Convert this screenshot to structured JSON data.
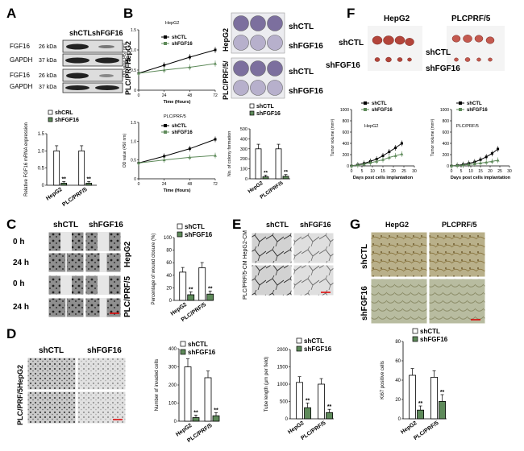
{
  "panels": {
    "A": "A",
    "B": "B",
    "C": "C",
    "D": "D",
    "E": "E",
    "F": "F",
    "G": "G"
  },
  "common": {
    "shCTL": "shCTL",
    "shFGF16": "shFGF16",
    "shCRL": "shCRL",
    "hepg2": "HepG2",
    "plc": "PLC/PRF/5",
    "plc2": "PLCPRF/5",
    "plc_slash": "PLC/PRF/5/",
    "sig": "**"
  },
  "A": {
    "col1": "shCTL",
    "col2": "shFGF16",
    "blots": [
      {
        "name": "FGF16",
        "kda": "26 kDa"
      },
      {
        "name": "GAPDH",
        "kda": "37 kDa"
      },
      {
        "name": "FGF16",
        "kda": "26 kDa"
      },
      {
        "name": "GAPDH",
        "kda": "37 kDa"
      }
    ],
    "side1": "HepG2",
    "side2": "PLC/PRF/5",
    "legend": [
      "shCRL",
      "shFGF16"
    ],
    "ylabel": "Relative FGF16 mRNA expression"
  },
  "B": {
    "plate_label1": "HepG2",
    "plate_label2": "PLC/PRF/5/",
    "ylabel_growth": "OD value (450 nm)",
    "xlabel_growth": "Time (Hours)",
    "ylabel_colony": "No. of colony formation"
  },
  "C": {
    "row_labels": [
      "0 h",
      "24 h",
      "0 h",
      "24 h"
    ],
    "side1": "HepG2",
    "side2": "PLC/PRF/5",
    "ylabel": "Percentage of wound closure (%)"
  },
  "D": {
    "side1": "HepG2",
    "side2": "PLC/PRF/5",
    "ylabel_invaded": "Number of invaded cells",
    "ylabel_tube": "Tube length (μm per field)"
  },
  "E": {
    "side_label": "PLC/PRF/5-CM HepG2-CM"
  },
  "F": {
    "ylabel": "Tumor volume (mm³)",
    "xlabel": "Days post cells implantation"
  },
  "G": {
    "col1": "HepG2",
    "col2": "PLCPRF/5",
    "row1": "shCTL",
    "row2": "shFGF16",
    "ylabel": "Ki67 positive cells"
  },
  "chart_data": [
    {
      "id": "A-mrna",
      "type": "bar",
      "categories": [
        "HepG2",
        "PLC/PRF/5"
      ],
      "series": [
        {
          "name": "shCRL",
          "values": [
            1.0,
            1.0
          ]
        },
        {
          "name": "shFGF16",
          "values": [
            0.06,
            0.06
          ]
        }
      ],
      "ylim": [
        0,
        1.5
      ],
      "ticks": [
        0,
        0.5,
        1.0,
        1.5
      ],
      "ylabel": "Relative FGF16 mRNA expression"
    },
    {
      "id": "B-hepg2",
      "type": "line",
      "title": "HepG2",
      "x": [
        0,
        24,
        48,
        72
      ],
      "series": [
        {
          "name": "shCTL",
          "values": [
            0.42,
            0.62,
            0.82,
            1.0
          ]
        },
        {
          "name": "shFGF16",
          "values": [
            0.42,
            0.5,
            0.57,
            0.66
          ]
        }
      ],
      "ylim": [
        0,
        1.5
      ],
      "ticks": [
        0,
        0.5,
        1.0,
        1.5
      ],
      "xlabel": "Time (Hours)",
      "ylabel": "OD value (450 nm)"
    },
    {
      "id": "B-plc",
      "type": "line",
      "title": "PLC/PRF/5",
      "x": [
        0,
        24,
        48,
        72
      ],
      "series": [
        {
          "name": "shCTL",
          "values": [
            0.42,
            0.6,
            0.8,
            1.05
          ]
        },
        {
          "name": "shFGF16",
          "values": [
            0.42,
            0.5,
            0.57,
            0.62
          ]
        }
      ],
      "ylim": [
        0,
        1.5
      ],
      "ticks": [
        0,
        0.5,
        1.0,
        1.5
      ],
      "xlabel": "Time (Hours)",
      "ylabel": "OD value (450 nm)"
    },
    {
      "id": "B-colony",
      "type": "bar",
      "categories": [
        "HepG2",
        "PLC/PRF/5"
      ],
      "series": [
        {
          "name": "shCTL",
          "values": [
            300,
            300
          ]
        },
        {
          "name": "shFGF16",
          "values": [
            20,
            25
          ]
        }
      ],
      "ylim": [
        0,
        500
      ],
      "ticks": [
        0,
        100,
        200,
        300,
        400,
        500
      ],
      "ylabel": "No. of colony formation"
    },
    {
      "id": "C-wound",
      "type": "bar",
      "categories": [
        "HepG2",
        "PLC/PRF/5"
      ],
      "series": [
        {
          "name": "shCTL",
          "values": [
            45,
            52
          ]
        },
        {
          "name": "shFGF16",
          "values": [
            9,
            10
          ]
        }
      ],
      "ylim": [
        0,
        100
      ],
      "ticks": [
        0,
        20,
        40,
        60,
        80,
        100
      ],
      "ylabel": "Percentage of wound closure (%)"
    },
    {
      "id": "D-invaded",
      "type": "bar",
      "categories": [
        "HepG2",
        "PLC/PRF/5"
      ],
      "series": [
        {
          "name": "shCTL",
          "values": [
            300,
            240
          ]
        },
        {
          "name": "shFGF16",
          "values": [
            20,
            30
          ]
        }
      ],
      "ylim": [
        0,
        400
      ],
      "ticks": [
        0,
        100,
        200,
        300,
        400
      ],
      "ylabel": "Number of invaded cells"
    },
    {
      "id": "D-tube",
      "type": "bar",
      "categories": [
        "HepG2",
        "PLC/PRF/5"
      ],
      "series": [
        {
          "name": "shCTL",
          "values": [
            1050,
            1000
          ]
        },
        {
          "name": "shFGF16",
          "values": [
            320,
            180
          ]
        }
      ],
      "ylim": [
        0,
        2000
      ],
      "ticks": [
        0,
        500,
        1000,
        1500,
        2000
      ],
      "ylabel": "Tube length (μm per field)"
    },
    {
      "id": "F-hepg2",
      "type": "line",
      "title": "HepG2",
      "x": [
        0,
        3,
        6,
        9,
        12,
        15,
        18,
        21,
        24
      ],
      "series": [
        {
          "name": "shCTL",
          "values": [
            0,
            20,
            45,
            80,
            120,
            180,
            250,
            320,
            400
          ]
        },
        {
          "name": "shFGF16",
          "values": [
            0,
            15,
            30,
            55,
            80,
            110,
            150,
            180,
            210
          ]
        }
      ],
      "ylim": [
        0,
        1000
      ],
      "ticks": [
        0,
        200,
        400,
        600,
        800,
        1000
      ],
      "xticks": [
        0,
        5,
        10,
        15,
        20,
        25,
        30
      ],
      "xlabel": "Days post cells implantation",
      "ylabel": "Tumor volume (mm³)"
    },
    {
      "id": "F-plc",
      "type": "line",
      "title": "PLC/PRF/5",
      "x": [
        0,
        3,
        6,
        9,
        12,
        15,
        18,
        21,
        24
      ],
      "series": [
        {
          "name": "shCTL",
          "values": [
            0,
            10,
            25,
            45,
            70,
            110,
            160,
            220,
            300
          ]
        },
        {
          "name": "shFGF16",
          "values": [
            0,
            8,
            15,
            25,
            35,
            50,
            65,
            80,
            100
          ]
        }
      ],
      "ylim": [
        0,
        1000
      ],
      "ticks": [
        0,
        200,
        400,
        600,
        800,
        1000
      ],
      "xticks": [
        0,
        5,
        10,
        15,
        20,
        25,
        30
      ],
      "xlabel": "Days post cells implantation",
      "ylabel": "Tumor volume (mm³)"
    },
    {
      "id": "G-ki67",
      "type": "bar",
      "categories": [
        "HepG2",
        "PLC/PRF/5"
      ],
      "series": [
        {
          "name": "shCTL",
          "values": [
            45,
            43
          ]
        },
        {
          "name": "shFGF16",
          "values": [
            9,
            18
          ]
        }
      ],
      "ylim": [
        0,
        80
      ],
      "ticks": [
        0,
        20,
        40,
        60,
        80
      ],
      "ylabel": "Ki67 positive cells"
    }
  ]
}
